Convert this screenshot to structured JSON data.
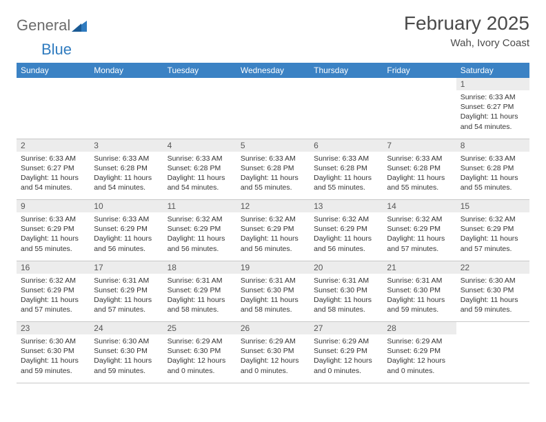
{
  "brand": {
    "part1": "General",
    "part2": "Blue"
  },
  "title": "February 2025",
  "location": "Wah, Ivory Coast",
  "colors": {
    "header_bg": "#3b82c4",
    "header_text": "#ffffff",
    "daynum_bg": "#ececec",
    "text": "#333333",
    "brand_gray": "#6b6b6b",
    "brand_blue": "#2f7bbf"
  },
  "weekdays": [
    "Sunday",
    "Monday",
    "Tuesday",
    "Wednesday",
    "Thursday",
    "Friday",
    "Saturday"
  ],
  "weeks": [
    {
      "nums": [
        "",
        "",
        "",
        "",
        "",
        "",
        "1"
      ],
      "cells": [
        null,
        null,
        null,
        null,
        null,
        null,
        {
          "sunrise": "Sunrise: 6:33 AM",
          "sunset": "Sunset: 6:27 PM",
          "daylight": "Daylight: 11 hours and 54 minutes."
        }
      ]
    },
    {
      "nums": [
        "2",
        "3",
        "4",
        "5",
        "6",
        "7",
        "8"
      ],
      "cells": [
        {
          "sunrise": "Sunrise: 6:33 AM",
          "sunset": "Sunset: 6:27 PM",
          "daylight": "Daylight: 11 hours and 54 minutes."
        },
        {
          "sunrise": "Sunrise: 6:33 AM",
          "sunset": "Sunset: 6:28 PM",
          "daylight": "Daylight: 11 hours and 54 minutes."
        },
        {
          "sunrise": "Sunrise: 6:33 AM",
          "sunset": "Sunset: 6:28 PM",
          "daylight": "Daylight: 11 hours and 54 minutes."
        },
        {
          "sunrise": "Sunrise: 6:33 AM",
          "sunset": "Sunset: 6:28 PM",
          "daylight": "Daylight: 11 hours and 55 minutes."
        },
        {
          "sunrise": "Sunrise: 6:33 AM",
          "sunset": "Sunset: 6:28 PM",
          "daylight": "Daylight: 11 hours and 55 minutes."
        },
        {
          "sunrise": "Sunrise: 6:33 AM",
          "sunset": "Sunset: 6:28 PM",
          "daylight": "Daylight: 11 hours and 55 minutes."
        },
        {
          "sunrise": "Sunrise: 6:33 AM",
          "sunset": "Sunset: 6:28 PM",
          "daylight": "Daylight: 11 hours and 55 minutes."
        }
      ]
    },
    {
      "nums": [
        "9",
        "10",
        "11",
        "12",
        "13",
        "14",
        "15"
      ],
      "cells": [
        {
          "sunrise": "Sunrise: 6:33 AM",
          "sunset": "Sunset: 6:29 PM",
          "daylight": "Daylight: 11 hours and 55 minutes."
        },
        {
          "sunrise": "Sunrise: 6:33 AM",
          "sunset": "Sunset: 6:29 PM",
          "daylight": "Daylight: 11 hours and 56 minutes."
        },
        {
          "sunrise": "Sunrise: 6:32 AM",
          "sunset": "Sunset: 6:29 PM",
          "daylight": "Daylight: 11 hours and 56 minutes."
        },
        {
          "sunrise": "Sunrise: 6:32 AM",
          "sunset": "Sunset: 6:29 PM",
          "daylight": "Daylight: 11 hours and 56 minutes."
        },
        {
          "sunrise": "Sunrise: 6:32 AM",
          "sunset": "Sunset: 6:29 PM",
          "daylight": "Daylight: 11 hours and 56 minutes."
        },
        {
          "sunrise": "Sunrise: 6:32 AM",
          "sunset": "Sunset: 6:29 PM",
          "daylight": "Daylight: 11 hours and 57 minutes."
        },
        {
          "sunrise": "Sunrise: 6:32 AM",
          "sunset": "Sunset: 6:29 PM",
          "daylight": "Daylight: 11 hours and 57 minutes."
        }
      ]
    },
    {
      "nums": [
        "16",
        "17",
        "18",
        "19",
        "20",
        "21",
        "22"
      ],
      "cells": [
        {
          "sunrise": "Sunrise: 6:32 AM",
          "sunset": "Sunset: 6:29 PM",
          "daylight": "Daylight: 11 hours and 57 minutes."
        },
        {
          "sunrise": "Sunrise: 6:31 AM",
          "sunset": "Sunset: 6:29 PM",
          "daylight": "Daylight: 11 hours and 57 minutes."
        },
        {
          "sunrise": "Sunrise: 6:31 AM",
          "sunset": "Sunset: 6:29 PM",
          "daylight": "Daylight: 11 hours and 58 minutes."
        },
        {
          "sunrise": "Sunrise: 6:31 AM",
          "sunset": "Sunset: 6:30 PM",
          "daylight": "Daylight: 11 hours and 58 minutes."
        },
        {
          "sunrise": "Sunrise: 6:31 AM",
          "sunset": "Sunset: 6:30 PM",
          "daylight": "Daylight: 11 hours and 58 minutes."
        },
        {
          "sunrise": "Sunrise: 6:31 AM",
          "sunset": "Sunset: 6:30 PM",
          "daylight": "Daylight: 11 hours and 59 minutes."
        },
        {
          "sunrise": "Sunrise: 6:30 AM",
          "sunset": "Sunset: 6:30 PM",
          "daylight": "Daylight: 11 hours and 59 minutes."
        }
      ]
    },
    {
      "nums": [
        "23",
        "24",
        "25",
        "26",
        "27",
        "28",
        ""
      ],
      "cells": [
        {
          "sunrise": "Sunrise: 6:30 AM",
          "sunset": "Sunset: 6:30 PM",
          "daylight": "Daylight: 11 hours and 59 minutes."
        },
        {
          "sunrise": "Sunrise: 6:30 AM",
          "sunset": "Sunset: 6:30 PM",
          "daylight": "Daylight: 11 hours and 59 minutes."
        },
        {
          "sunrise": "Sunrise: 6:29 AM",
          "sunset": "Sunset: 6:30 PM",
          "daylight": "Daylight: 12 hours and 0 minutes."
        },
        {
          "sunrise": "Sunrise: 6:29 AM",
          "sunset": "Sunset: 6:30 PM",
          "daylight": "Daylight: 12 hours and 0 minutes."
        },
        {
          "sunrise": "Sunrise: 6:29 AM",
          "sunset": "Sunset: 6:29 PM",
          "daylight": "Daylight: 12 hours and 0 minutes."
        },
        {
          "sunrise": "Sunrise: 6:29 AM",
          "sunset": "Sunset: 6:29 PM",
          "daylight": "Daylight: 12 hours and 0 minutes."
        },
        null
      ]
    }
  ]
}
